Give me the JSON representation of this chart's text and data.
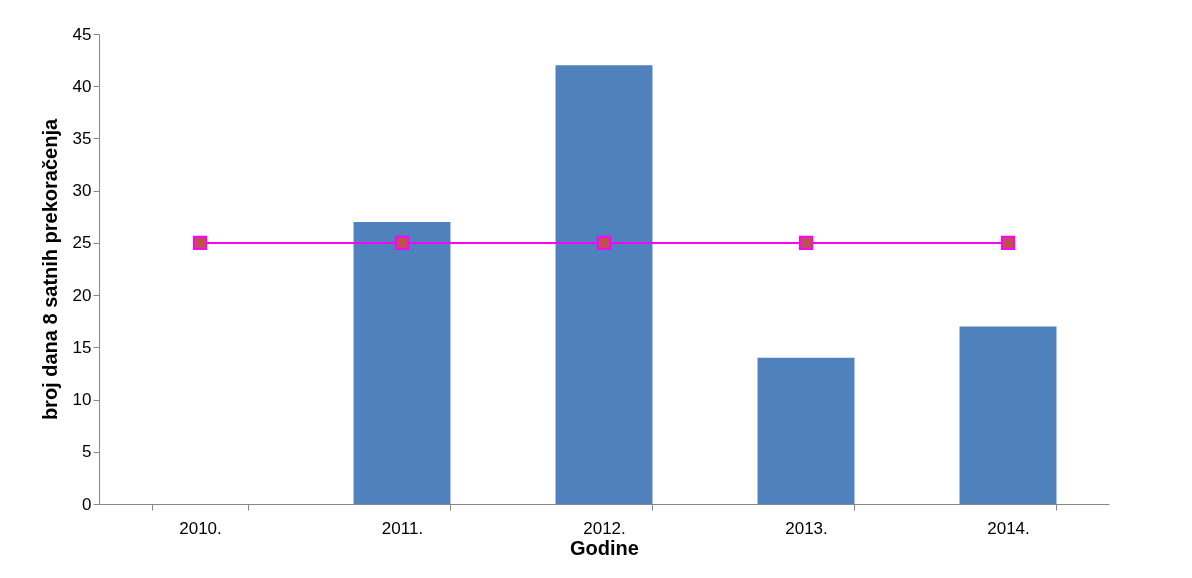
{
  "chart_data": {
    "type": "bar",
    "xlabel": "Godine",
    "ylabel": "broj dana 8 satnih prekoračenja",
    "categories": [
      "2010.",
      "2011.",
      "2012.",
      "2013.",
      "2014."
    ],
    "series": [
      {
        "color": "#4f81bd",
        "values": [
          null,
          27,
          42,
          14,
          17
        ]
      },
      {
        "type": "line",
        "color": "#ff00ff",
        "values": [
          25,
          25,
          25,
          25,
          25
        ],
        "marker": "square"
      }
    ],
    "ylim": [
      0,
      45
    ],
    "yticks": [
      0,
      5,
      10,
      15,
      20,
      25,
      30,
      35,
      40,
      45
    ],
    "grid": false
  }
}
